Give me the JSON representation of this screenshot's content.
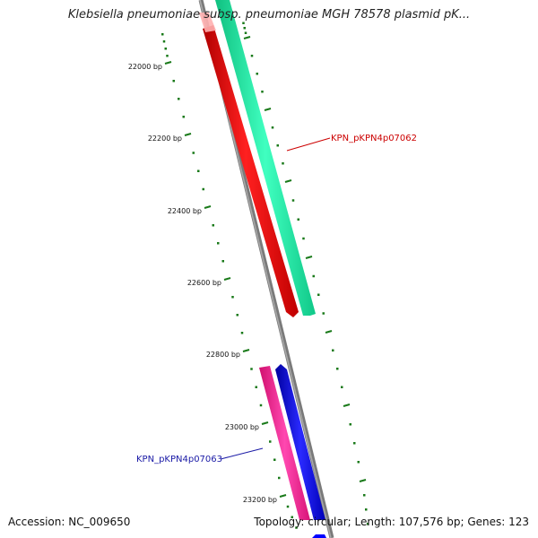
{
  "title": "Klebsiella pneumoniae subsp. pneumoniae MGH 78578 plasmid pK...",
  "footer": {
    "accession": "Accession: NC_009650",
    "summary": "Topology: circular; Length: 107,576 bp; Genes: 123"
  },
  "ruler": {
    "color": "#1a7a1a",
    "major_ticks": [
      "22000 bp",
      "22200 bp",
      "22400 bp",
      "22600 bp",
      "22800 bp",
      "23000 bp",
      "23200 bp"
    ]
  },
  "genes": [
    {
      "label": "KPN_pKPN4p07062",
      "color": "#cc0000",
      "label_color": "#cc0000"
    },
    {
      "label": "KPN_pKPN4p07063",
      "color": "#0000cc",
      "label_color": "#1a1aa6"
    }
  ],
  "colors": {
    "backbone": "#7a7a7a",
    "red_gene": "#ff0000",
    "green_gene": "#1ee8a0",
    "pink_gene": "#ff1e96",
    "blue_gene": "#0000ff"
  }
}
